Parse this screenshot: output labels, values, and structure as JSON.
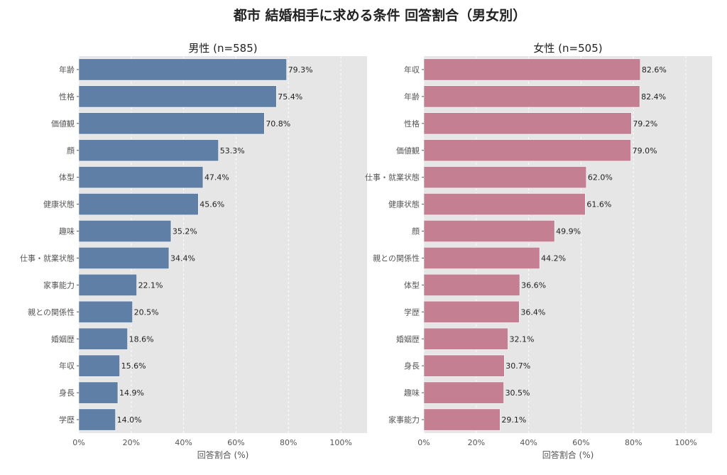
{
  "figure_title": "都市 結婚相手に求める条件 回答割合（男女別）",
  "colors": {
    "male_bar": "#5f7fa6",
    "female_bar": "#c47f93",
    "plot_bg": "#e6e6e6",
    "grid": "#ffffff",
    "text": "#222222",
    "tick_text": "#555555"
  },
  "chart_data": [
    {
      "type": "bar",
      "orientation": "horizontal",
      "title": "男性 (n=585)",
      "xlabel": "回答割合 (%)",
      "ylabel": "",
      "xlim": [
        0,
        110
      ],
      "xticks": [
        0,
        20,
        40,
        60,
        80,
        100
      ],
      "xtick_labels": [
        "0%",
        "20%",
        "40%",
        "60%",
        "80%",
        "100%"
      ],
      "grid": true,
      "categories": [
        "年齢",
        "性格",
        "価値観",
        "顔",
        "体型",
        "健康状態",
        "趣味",
        "仕事・就業状態",
        "家事能力",
        "親との関係性",
        "婚姻歴",
        "年収",
        "身長",
        "学歴"
      ],
      "values": [
        79.3,
        75.4,
        70.8,
        53.3,
        47.4,
        45.6,
        35.2,
        34.4,
        22.1,
        20.5,
        18.6,
        15.6,
        14.9,
        14.0
      ],
      "value_labels": [
        "79.3%",
        "75.4%",
        "70.8%",
        "53.3%",
        "47.4%",
        "45.6%",
        "35.2%",
        "34.4%",
        "22.1%",
        "20.5%",
        "18.6%",
        "15.6%",
        "14.9%",
        "14.0%"
      ],
      "color": "#5f7fa6"
    },
    {
      "type": "bar",
      "orientation": "horizontal",
      "title": "女性 (n=505)",
      "xlabel": "回答割合 (%)",
      "ylabel": "",
      "xlim": [
        0,
        110
      ],
      "xticks": [
        0,
        20,
        40,
        60,
        80,
        100
      ],
      "xtick_labels": [
        "0%",
        "20%",
        "40%",
        "60%",
        "80%",
        "100%"
      ],
      "grid": true,
      "categories": [
        "年収",
        "年齢",
        "性格",
        "価値観",
        "仕事・就業状態",
        "健康状態",
        "顔",
        "親との関係性",
        "体型",
        "学歴",
        "婚姻歴",
        "身長",
        "趣味",
        "家事能力"
      ],
      "values": [
        82.6,
        82.4,
        79.2,
        79.0,
        62.0,
        61.6,
        49.9,
        44.2,
        36.6,
        36.4,
        32.1,
        30.7,
        30.5,
        29.1
      ],
      "value_labels": [
        "82.6%",
        "82.4%",
        "79.2%",
        "79.0%",
        "62.0%",
        "61.6%",
        "49.9%",
        "44.2%",
        "36.6%",
        "36.4%",
        "32.1%",
        "30.7%",
        "30.5%",
        "29.1%"
      ],
      "color": "#c47f93"
    }
  ]
}
